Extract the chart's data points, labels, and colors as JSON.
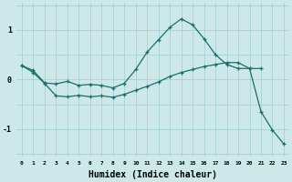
{
  "xlabel": "Humidex (Indice chaleur)",
  "xlim": [
    -0.5,
    23.5
  ],
  "ylim": [
    -1.55,
    1.55
  ],
  "yticks": [
    -1,
    0,
    1
  ],
  "xticks": [
    0,
    1,
    2,
    3,
    4,
    5,
    6,
    7,
    8,
    9,
    10,
    11,
    12,
    13,
    14,
    15,
    16,
    17,
    18,
    19,
    20,
    21,
    22,
    23
  ],
  "bg_color": "#cce8e8",
  "line_color": "#1a6e6e",
  "curve1_x": [
    0,
    1,
    2,
    3,
    4,
    5,
    6,
    7,
    8,
    9,
    10,
    11,
    12,
    13,
    14,
    15,
    16,
    17,
    18,
    19,
    20,
    21
  ],
  "curve1_y": [
    0.28,
    0.18,
    -0.07,
    -0.09,
    -0.04,
    -0.12,
    -0.1,
    -0.12,
    -0.17,
    -0.08,
    0.2,
    0.55,
    0.8,
    1.05,
    1.22,
    1.1,
    0.82,
    0.5,
    0.3,
    0.22,
    0.22,
    0.22
  ],
  "curve2_x": [
    0,
    1,
    2,
    3,
    4,
    5,
    6,
    7,
    8,
    9,
    10,
    11,
    12,
    13,
    14,
    15,
    16,
    17,
    18,
    19,
    20,
    21,
    22,
    23
  ],
  "curve2_y": [
    0.28,
    0.14,
    -0.08,
    -0.33,
    -0.35,
    -0.32,
    -0.35,
    -0.33,
    -0.36,
    -0.3,
    -0.22,
    -0.14,
    -0.05,
    0.06,
    0.14,
    0.2,
    0.26,
    0.3,
    0.34,
    0.34,
    0.22,
    -0.65,
    -1.02,
    -1.3
  ],
  "grid_color": "#a0cccc",
  "marker_size": 3.5
}
